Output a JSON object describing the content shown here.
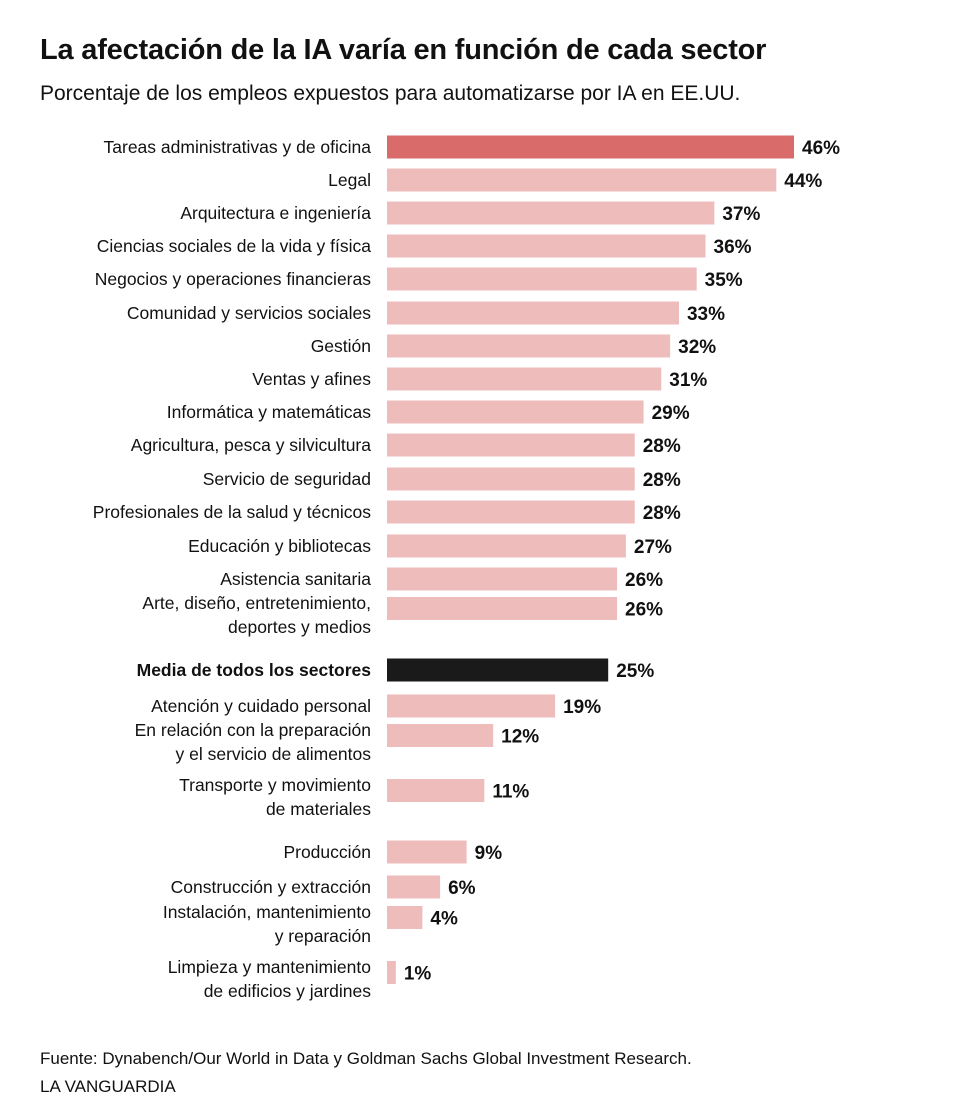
{
  "title": "La afectación de la IA varía en función de cada sector",
  "subtitle": "Porcentaje de los empleos expuestos para automatizarse por IA en EE.UU.",
  "source": "Fuente: Dynabench/Our World in Data y Goldman Sachs Global Investment Research.",
  "brand": "LA VANGUARDIA",
  "colors": {
    "highlight": "#d96b6b",
    "bar": "#efbcbc",
    "average": "#1a1a1a",
    "text": "#111111"
  },
  "chart_data": {
    "type": "bar",
    "orientation": "horizontal",
    "unit": "%",
    "xlim": [
      0,
      46
    ],
    "categories": [
      [
        "Tareas administrativas y de oficina"
      ],
      [
        "Legal"
      ],
      [
        "Arquitectura e ingeniería"
      ],
      [
        "Ciencias sociales de la vida y física"
      ],
      [
        "Negocios y operaciones financieras"
      ],
      [
        "Comunidad y servicios sociales"
      ],
      [
        "Gestión"
      ],
      [
        "Ventas y afines"
      ],
      [
        "Informática y matemáticas"
      ],
      [
        "Agricultura, pesca y silvicultura"
      ],
      [
        "Servicio de seguridad"
      ],
      [
        "Profesionales de la salud y técnicos"
      ],
      [
        "Educación y bibliotecas"
      ],
      [
        "Asistencia sanitaria"
      ],
      [
        "Arte, diseño, entretenimiento,",
        "deportes y medios"
      ],
      [
        "Media de todos los sectores"
      ],
      [
        "Atención y cuidado personal"
      ],
      [
        "En relación con la preparación",
        "y el servicio de alimentos"
      ],
      [
        "Transporte y movimiento",
        "de materiales"
      ],
      [
        "Producción"
      ],
      [
        "Construcción y extracción"
      ],
      [
        "Instalación, mantenimiento",
        "y reparación"
      ],
      [
        "Limpieza y mantenimiento",
        "de edificios y jardines"
      ]
    ],
    "values": [
      46,
      44,
      37,
      36,
      35,
      33,
      32,
      31,
      29,
      28,
      28,
      28,
      27,
      26,
      26,
      25,
      19,
      12,
      11,
      9,
      6,
      4,
      1
    ],
    "data_labels": [
      "46%",
      "44%",
      "37%",
      "36%",
      "35%",
      "33%",
      "32%",
      "31%",
      "29%",
      "28%",
      "28%",
      "28%",
      "27%",
      "26%",
      "26%",
      "25%",
      "19%",
      "12%",
      "11%",
      "9%",
      "6%",
      "4%",
      "1%"
    ],
    "highlight_index": 0,
    "average_index": 15,
    "xlabel": "",
    "ylabel": "",
    "grid": false,
    "legend": "none"
  }
}
